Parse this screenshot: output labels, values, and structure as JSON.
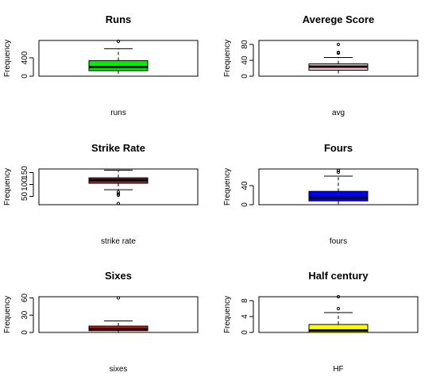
{
  "chart_data": [
    {
      "type": "boxplot",
      "title": "Runs",
      "xlabel": "runs",
      "ylabel": "Frequency",
      "ylim": [
        0,
        780
      ],
      "yticks": [
        0,
        400
      ],
      "yticklabels": [
        "0",
        "400"
      ],
      "fill": "#00ee00",
      "stats": {
        "whisker_low": 0,
        "q1": 120,
        "median": 200,
        "q3": 340,
        "whisker_high": 600
      },
      "outliers": [
        760
      ]
    },
    {
      "type": "boxplot",
      "title": "Averege Score",
      "xlabel": "avg",
      "ylabel": "Frequency",
      "ylim": [
        0,
        90
      ],
      "yticks": [
        0,
        40,
        80
      ],
      "yticklabels": [
        "0",
        "40",
        "80"
      ],
      "fill": "#ffc0cb",
      "stats": {
        "whisker_low": 0,
        "q1": 15,
        "median": 24,
        "q3": 31,
        "whisker_high": 47
      },
      "outliers": [
        58,
        60,
        80
      ]
    },
    {
      "type": "boxplot",
      "title": "Strike Rate",
      "xlabel": "strike rate",
      "ylabel": "Frequency",
      "ylim": [
        15,
        165
      ],
      "yticks": [
        50,
        100,
        150
      ],
      "yticklabels": [
        "50",
        "100",
        "150"
      ],
      "fill": "#a52a2a",
      "stats": {
        "whisker_low": 78,
        "q1": 105,
        "median": 118,
        "q3": 128,
        "whisker_high": 160
      },
      "outliers": [
        68,
        60,
        55,
        20
      ]
    },
    {
      "type": "boxplot",
      "title": "Fours",
      "xlabel": "fours",
      "ylabel": "Frequency",
      "ylim": [
        0,
        75
      ],
      "yticks": [
        0,
        40
      ],
      "yticklabels": [
        "0",
        "40"
      ],
      "fill": "#0000ff",
      "stats": {
        "whisker_low": 0,
        "q1": 8,
        "median": 15,
        "q3": 28,
        "whisker_high": 60
      },
      "outliers": [
        68,
        72
      ]
    },
    {
      "type": "boxplot",
      "title": "Sixes",
      "xlabel": "sixes",
      "ylabel": "Frequency",
      "ylim": [
        0,
        62
      ],
      "yticks": [
        0,
        30,
        60
      ],
      "yticklabels": [
        "0",
        "30",
        "60"
      ],
      "fill": "#ff0000",
      "stats": {
        "whisker_low": 0,
        "q1": 3,
        "median": 6,
        "q3": 11,
        "whisker_high": 20
      },
      "outliers": [
        60
      ]
    },
    {
      "type": "boxplot",
      "title": "Half century",
      "xlabel": "HF",
      "ylabel": "Frequency",
      "ylim": [
        0,
        9
      ],
      "yticks": [
        0,
        4,
        8
      ],
      "yticklabels": [
        "0",
        "4",
        "8"
      ],
      "fill": "#ffff00",
      "stats": {
        "whisker_low": 0,
        "q1": 0,
        "median": 0.5,
        "q3": 2,
        "whisker_high": 5
      },
      "outliers": [
        6,
        9
      ]
    }
  ]
}
